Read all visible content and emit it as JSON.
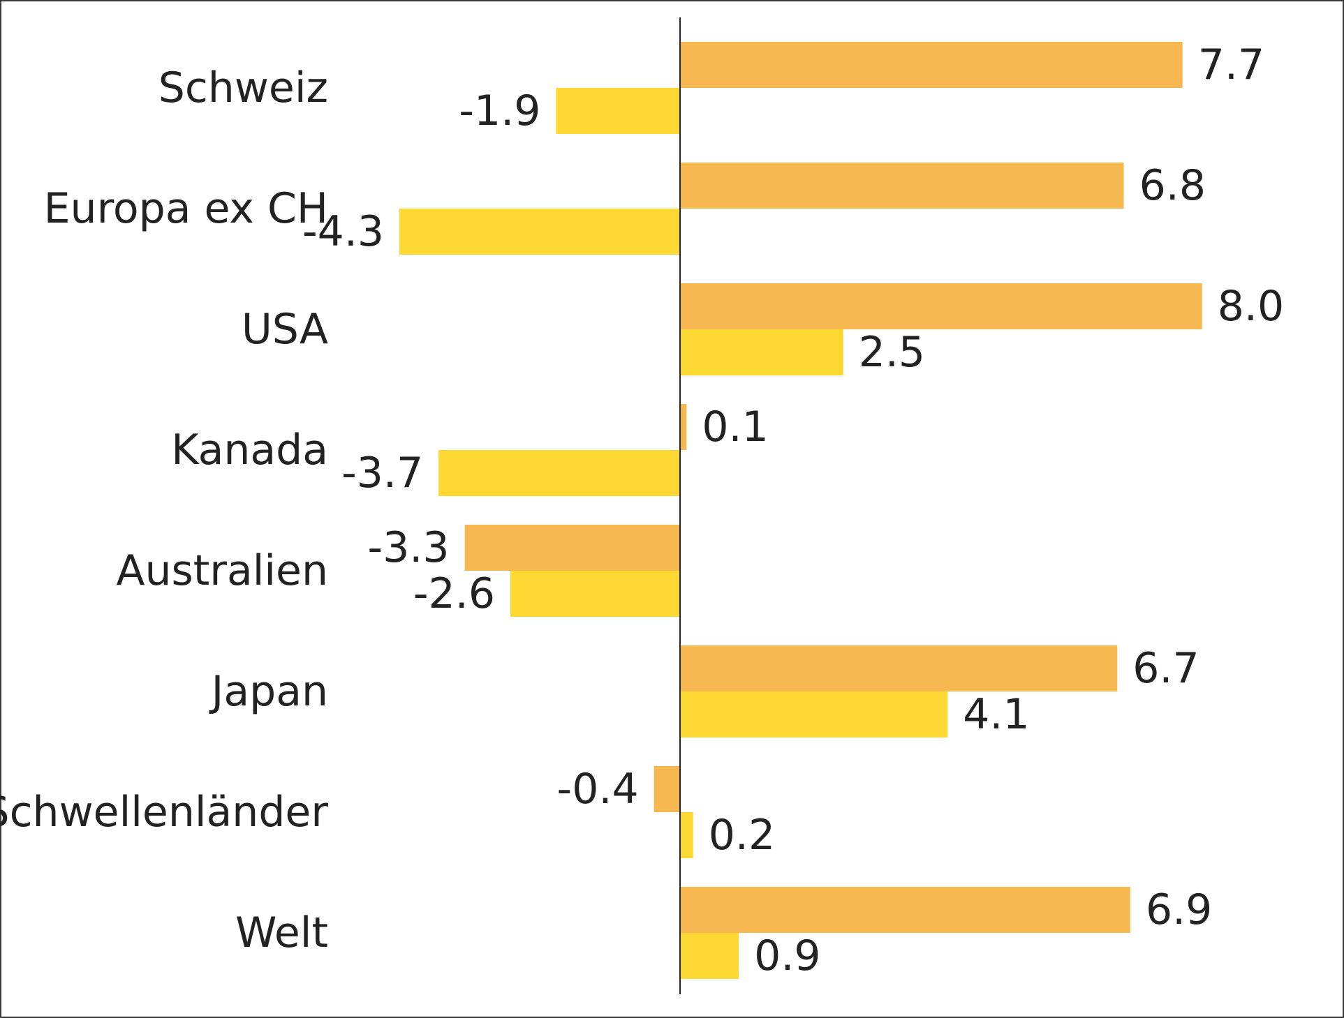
{
  "chart_data": {
    "type": "bar",
    "orientation": "horizontal",
    "categories": [
      "Schweiz",
      "Europa ex CH",
      "USA",
      "Kanada",
      "Australien",
      "Japan",
      "Schwellenländer",
      "Welt"
    ],
    "series": [
      {
        "values": [
          7.7,
          6.8,
          8.0,
          0.1,
          -3.3,
          6.7,
          -0.4,
          6.9
        ],
        "color": "#f8b851"
      },
      {
        "values": [
          -1.9,
          -4.3,
          2.5,
          -3.7,
          -2.6,
          4.1,
          0.2,
          0.9
        ],
        "color": "#fdd832"
      }
    ],
    "value_labels": [
      [
        "7.7",
        "6.8",
        "8.0",
        "0.1",
        "-3.3",
        "6.7",
        "-0.4",
        "6.9"
      ],
      [
        "-1.9",
        "-4.3",
        "2.5",
        "-3.7",
        "-2.6",
        "4.1",
        "0.2",
        "0.9"
      ]
    ],
    "xlim": [
      -10.1,
      9.8
    ],
    "title": "",
    "xlabel": "",
    "ylabel": "",
    "grid": false,
    "legend": "none",
    "frame_color": "#3c3c3c",
    "axis_color": "#222222",
    "text_color": "#222222"
  }
}
